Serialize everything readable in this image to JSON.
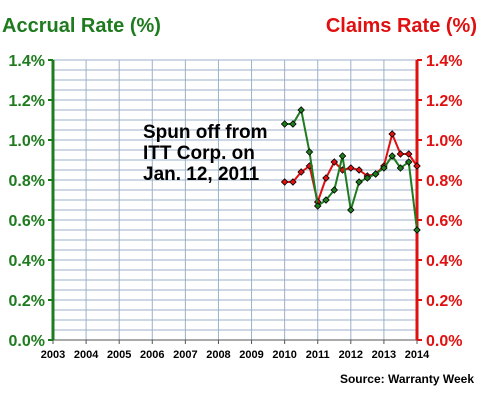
{
  "chart_data": {
    "type": "line",
    "left_title": "Accrual Rate (%)",
    "right_title": "Claims Rate (%)",
    "annotation": [
      "Spun off from",
      "ITT Corp. on",
      "Jan. 12, 2011"
    ],
    "source": "Source: Warranty Week",
    "x_ticks": [
      "2003",
      "2004",
      "2005",
      "2006",
      "2007",
      "2008",
      "2009",
      "2010",
      "2011",
      "2012",
      "2013",
      "2014"
    ],
    "y_left_ticks": [
      "0.0%",
      "0.2%",
      "0.4%",
      "0.6%",
      "0.8%",
      "1.0%",
      "1.2%",
      "1.4%"
    ],
    "y_right_ticks": [
      "0.0%",
      "0.2%",
      "0.4%",
      "0.6%",
      "0.8%",
      "1.0%",
      "1.2%",
      "1.4%"
    ],
    "xlim": [
      2003,
      2014
    ],
    "ylim": [
      0,
      1.4
    ],
    "grid": true,
    "colors": {
      "accrual": "#1e7b1e",
      "claims": "#e01010",
      "grid": "#9bb0c8",
      "left_axis": "#1e7b1e",
      "right_axis": "#e01010"
    },
    "series": [
      {
        "axis": "left",
        "x": [
          2010.0,
          2010.25,
          2010.5,
          2010.75,
          2011.0,
          2011.25,
          2011.5,
          2011.75,
          2012.0,
          2012.25,
          2012.5,
          2012.75,
          2013.0,
          2013.25,
          2013.5,
          2013.75,
          2014.0
        ],
        "values": [
          1.08,
          1.08,
          1.15,
          0.94,
          0.67,
          0.7,
          0.75,
          0.92,
          0.65,
          0.79,
          0.81,
          0.83,
          0.86,
          0.92,
          0.86,
          0.89,
          0.55
        ]
      },
      {
        "axis": "right",
        "x": [
          2010.0,
          2010.25,
          2010.5,
          2010.75,
          2011.0,
          2011.25,
          2011.5,
          2011.75,
          2012.0,
          2012.25,
          2012.5,
          2012.75,
          2013.0,
          2013.25,
          2013.5,
          2013.75,
          2014.0
        ],
        "values": [
          0.79,
          0.79,
          0.84,
          0.87,
          0.69,
          0.81,
          0.89,
          0.85,
          0.86,
          0.85,
          0.82,
          0.83,
          0.87,
          1.03,
          0.93,
          0.93,
          0.87
        ]
      }
    ]
  }
}
